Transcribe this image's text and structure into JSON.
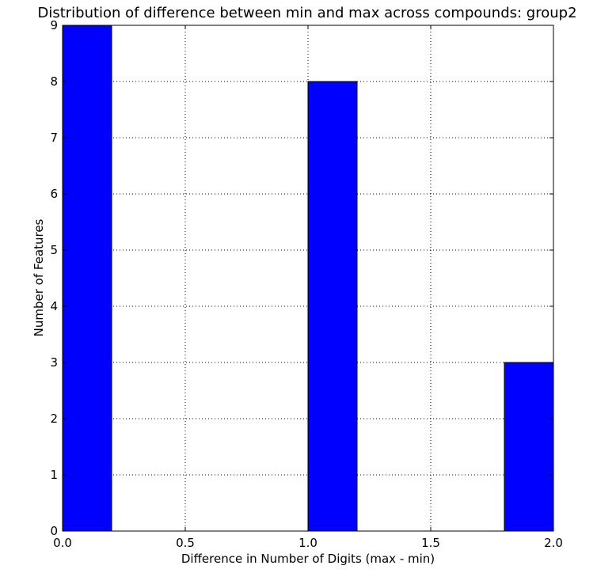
{
  "chart_data": {
    "type": "bar",
    "title": "Distribution of difference between min and max across compounds: group2",
    "xlabel": "Difference in Number of Digits (max - min)",
    "ylabel": "Number of Features",
    "xlim": [
      0,
      2
    ],
    "ylim": [
      0,
      9
    ],
    "grid": true,
    "bar_color": "#0000ff",
    "bins": [
      {
        "x0": 0.0,
        "x1": 0.2,
        "count": 9
      },
      {
        "x0": 0.2,
        "x1": 0.4,
        "count": 0
      },
      {
        "x0": 0.4,
        "x1": 0.6,
        "count": 0
      },
      {
        "x0": 0.6,
        "x1": 0.8,
        "count": 0
      },
      {
        "x0": 0.8,
        "x1": 1.0,
        "count": 0
      },
      {
        "x0": 1.0,
        "x1": 1.2,
        "count": 8
      },
      {
        "x0": 1.2,
        "x1": 1.4,
        "count": 0
      },
      {
        "x0": 1.4,
        "x1": 1.6,
        "count": 0
      },
      {
        "x0": 1.6,
        "x1": 1.8,
        "count": 0
      },
      {
        "x0": 1.8,
        "x1": 2.0,
        "count": 3
      }
    ],
    "x_ticks": [
      "0.0",
      "0.5",
      "1.0",
      "1.5",
      "2.0"
    ],
    "y_ticks": [
      "0",
      "1",
      "2",
      "3",
      "4",
      "5",
      "6",
      "7",
      "8",
      "9"
    ]
  }
}
